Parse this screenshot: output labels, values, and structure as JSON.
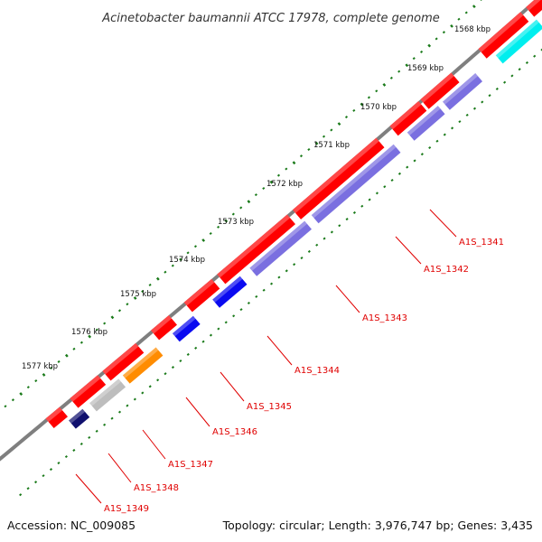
{
  "header": {
    "title": "Acinetobacter baumannii ATCC 17978, complete genome"
  },
  "footer": {
    "accession": "Accession: NC_009085",
    "summary": "Topology: circular; Length: 3,976,747 bp; Genes: 3,435"
  },
  "colors": {
    "backbone": "#7f7f7f",
    "tick_dots": "#1a7a1a",
    "forward_gene": "#ff0000",
    "label_text": "#e00000",
    "leader_line": "#e00000",
    "reverse_purple": "#7a6fe0",
    "reverse_blue": "#0a0af0",
    "reverse_navy": "#10106e",
    "reverse_gray": "#bdbdbd",
    "reverse_orange": "#ff8c00",
    "reverse_cyan": "#00eeee",
    "reverse_darkgray": "#6e6e6e"
  },
  "scale_labels": [
    "1568 kbp",
    "1569 kbp",
    "1570 kbp",
    "1571 kbp",
    "1572 kbp",
    "1573 kbp",
    "1574 kbp",
    "1575 kbp",
    "1576 kbp",
    "1577 kbp"
  ],
  "gene_labels": [
    "A1S_1341",
    "A1S_1342",
    "A1S_1343",
    "A1S_1344",
    "A1S_1345",
    "A1S_1346",
    "A1S_1347",
    "A1S_1348",
    "A1S_1349"
  ]
}
